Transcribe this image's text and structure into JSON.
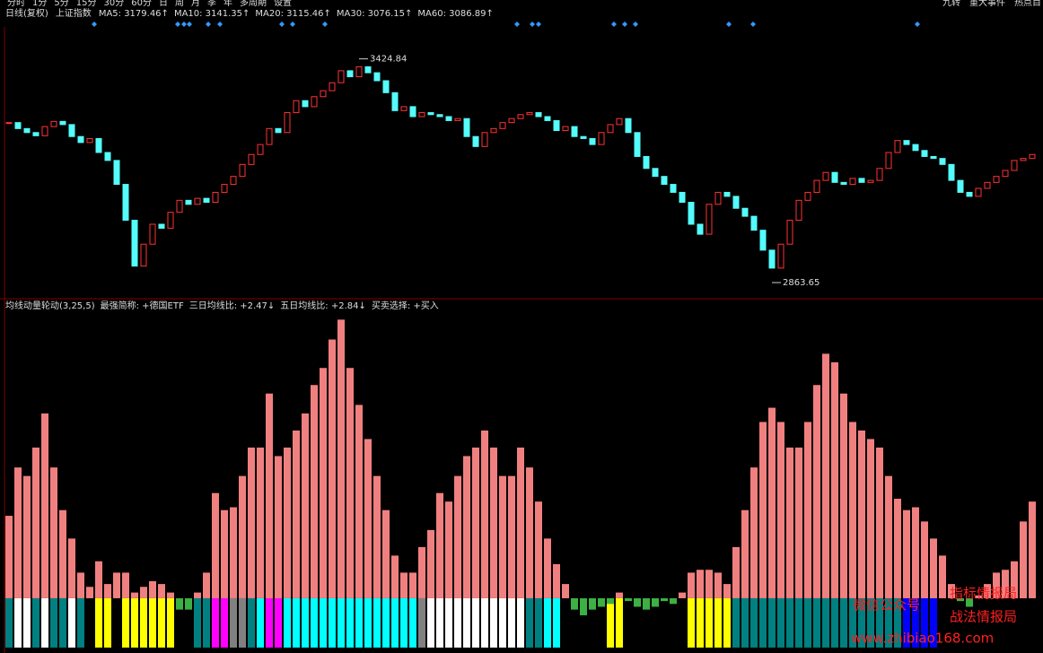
{
  "toolbar": {
    "left": [
      "分时",
      "1分",
      "5分",
      "15分",
      "30分",
      "60分",
      "日",
      "周",
      "月",
      "季",
      "年",
      "多周期",
      "设置"
    ],
    "right": [
      "九转",
      "重大事件",
      "热点目"
    ]
  },
  "info_line": {
    "period": "日线(复权)",
    "symbol": "上证指数",
    "ma": [
      {
        "label": "MA5: 3179.46↑",
        "color": "#ffffff"
      },
      {
        "label": "MA10: 3141.35↑",
        "color": "#ffff00"
      },
      {
        "label": "MA20: 3115.46↑",
        "color": "#ff66ff"
      },
      {
        "label": "MA30: 3076.15↑",
        "color": "#00ff00"
      },
      {
        "label": "MA60: 3086.89↑",
        "color": "#7fd4ff"
      }
    ]
  },
  "chart_data": [
    {
      "type": "candlestick",
      "up_color": "#ff3232",
      "down_color": "#54fcfc",
      "values": [
        3265,
        3250,
        3240,
        3232,
        3255,
        3268,
        3260,
        3230,
        3215,
        3225,
        3190,
        3170,
        3110,
        3020,
        2905,
        2960,
        3010,
        3000,
        3040,
        3070,
        3060,
        3075,
        3065,
        3090,
        3110,
        3130,
        3160,
        3185,
        3210,
        3250,
        3240,
        3290,
        3320,
        3305,
        3330,
        3345,
        3365,
        3395,
        3380,
        3405,
        3390,
        3370,
        3340,
        3295,
        3305,
        3280,
        3290,
        3285,
        3280,
        3270,
        3275,
        3230,
        3205,
        3240,
        3250,
        3265,
        3275,
        3285,
        3290,
        3280,
        3270,
        3245,
        3255,
        3230,
        3225,
        3210,
        3240,
        3260,
        3275,
        3240,
        3180,
        3150,
        3130,
        3110,
        3090,
        3065,
        3010,
        2985,
        3060,
        3090,
        3080,
        3050,
        3030,
        2995,
        2945,
        2900,
        2960,
        3020,
        3070,
        3090,
        3120,
        3140,
        3115,
        3110,
        3125,
        3115,
        3120,
        3150,
        3190,
        3220,
        3210,
        3195,
        3180,
        3175,
        3160,
        3120,
        3090,
        3080,
        3100,
        3115,
        3130,
        3145,
        3170,
        3175,
        3185
      ],
      "ylim": [
        2830,
        3505
      ],
      "annotations": [
        {
          "value": 3424.84
        },
        {
          "value": 2863.65
        }
      ]
    },
    {
      "type": "bar",
      "title": "均线动量轮动(3,25,5)",
      "legend_items": [
        {
          "text": "最强简称: +德国ETF",
          "color": "#ffffff"
        },
        {
          "text": "三日均线比: +2.47↓",
          "color": "#8080ff"
        },
        {
          "text": "五日均线比: +2.84↓",
          "color": "#ffffff"
        },
        {
          "text": "买卖选择: +买入",
          "color": "#ffffff"
        }
      ],
      "positive_color": "#f08080",
      "negative_color": "#3cb043",
      "values": [
        29,
        46,
        43,
        53,
        65,
        46,
        31,
        21,
        9,
        4,
        13,
        5,
        9,
        9,
        2,
        4,
        6,
        5,
        2,
        -4,
        -4,
        2,
        9,
        37,
        31,
        32,
        43,
        53,
        53,
        72,
        50,
        53,
        59,
        65,
        75,
        81,
        91,
        98,
        81,
        68,
        56,
        43,
        31,
        15,
        9,
        9,
        18,
        24,
        37,
        34,
        43,
        50,
        53,
        59,
        53,
        43,
        43,
        53,
        46,
        34,
        21,
        12,
        5,
        -4,
        -6,
        -4,
        -3,
        -2,
        2,
        -1,
        -3,
        -4,
        -3,
        -1,
        -2,
        2,
        9,
        10,
        10,
        9,
        5,
        18,
        31,
        46,
        62,
        67,
        62,
        53,
        53,
        62,
        75,
        86,
        83,
        72,
        62,
        59,
        56,
        53,
        43,
        35,
        31,
        32,
        27,
        21,
        15,
        5,
        -1,
        -3,
        1,
        5,
        9,
        10,
        13,
        27,
        34
      ],
      "state_colors": [
        "#008080",
        "#ffffff",
        "#ffffff",
        "#008080",
        "#ffffff",
        "#008080",
        "#008080",
        "#ffffff",
        "#008080",
        "#000000",
        "#ffff00",
        "#ffff00",
        "#000000",
        "#ffff00",
        "#ffff00",
        "#ffff00",
        "#ffff00",
        "#ffff00",
        "#ffff00",
        "#000000",
        "#000000",
        "#008080",
        "#008080",
        "#ff00ff",
        "#ff00ff",
        "#808080",
        "#808080",
        "#008080",
        "#00ffff",
        "#ff00ff",
        "#ff00ff",
        "#00ffff",
        "#00ffff",
        "#00ffff",
        "#00ffff",
        "#00ffff",
        "#00ffff",
        "#00ffff",
        "#00ffff",
        "#00ffff",
        "#00ffff",
        "#00ffff",
        "#00ffff",
        "#00ffff",
        "#00ffff",
        "#00ffff",
        "#808080",
        "#ffffff",
        "#ffffff",
        "#ffffff",
        "#ffffff",
        "#ffffff",
        "#ffffff",
        "#ffffff",
        "#ffffff",
        "#ffffff",
        "#ffffff",
        "#ffffff",
        "#008080",
        "#008080",
        "#00ffff",
        "#00ffff",
        "#000000",
        "#000000",
        "#000000",
        "#000000",
        "#000000",
        "#ffff00",
        "#ffff00",
        "#000000",
        "#000000",
        "#000000",
        "#000000",
        "#000000",
        "#000000",
        "#000000",
        "#ffff00",
        "#ffff00",
        "#ffff00",
        "#ffff00",
        "#ffff00",
        "#008080",
        "#008080",
        "#008080",
        "#008080",
        "#008080",
        "#008080",
        "#008080",
        "#008080",
        "#008080",
        "#008080",
        "#008080",
        "#008080",
        "#008080",
        "#008080",
        "#008080",
        "#008080",
        "#008080",
        "#008080",
        "#008080",
        "#0000ff",
        "#0000ff",
        "#0000ff",
        "#0000ff",
        "#000000",
        "#000000",
        "#000000",
        "#000000",
        "#000000",
        "#000000",
        "#000000",
        "#000000",
        "#000000",
        "#000000",
        "#000000"
      ],
      "ylim": [
        -18,
        100
      ]
    }
  ],
  "watermark": {
    "line1": "微信公众号",
    "line2": "指标情报局",
    "line3": "战法情报局",
    "url": "www.zhibiao168.com"
  }
}
